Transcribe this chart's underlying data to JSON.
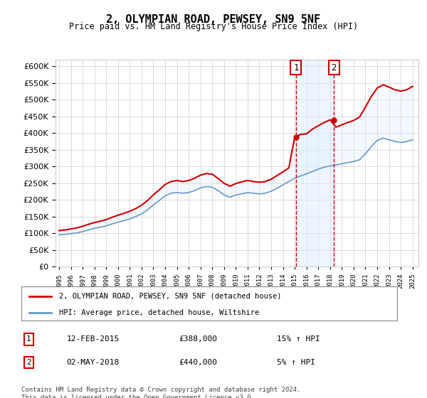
{
  "title": "2, OLYMPIAN ROAD, PEWSEY, SN9 5NF",
  "subtitle": "Price paid vs. HM Land Registry's House Price Index (HPI)",
  "ylabel_ticks": [
    "£0",
    "£50K",
    "£100K",
    "£150K",
    "£200K",
    "£250K",
    "£300K",
    "£350K",
    "£400K",
    "£450K",
    "£500K",
    "£550K",
    "£600K"
  ],
  "ylim": [
    0,
    620000
  ],
  "xlim_start": 1995.0,
  "xlim_end": 2025.5,
  "hpi_years": [
    1995.0,
    1995.5,
    1996.0,
    1996.5,
    1997.0,
    1997.5,
    1998.0,
    1998.5,
    1999.0,
    1999.5,
    2000.0,
    2000.5,
    2001.0,
    2001.5,
    2002.0,
    2002.5,
    2003.0,
    2003.5,
    2004.0,
    2004.5,
    2005.0,
    2005.5,
    2006.0,
    2006.5,
    2007.0,
    2007.5,
    2008.0,
    2008.5,
    2009.0,
    2009.5,
    2010.0,
    2010.5,
    2011.0,
    2011.5,
    2012.0,
    2012.5,
    2013.0,
    2013.5,
    2014.0,
    2014.5,
    2015.0,
    2015.5,
    2016.0,
    2016.5,
    2017.0,
    2017.5,
    2018.0,
    2018.5,
    2019.0,
    2019.5,
    2020.0,
    2020.5,
    2021.0,
    2021.5,
    2022.0,
    2022.5,
    2023.0,
    2023.5,
    2024.0,
    2024.5,
    2025.0
  ],
  "hpi_values": [
    95000,
    97000,
    99000,
    101000,
    105000,
    110000,
    115000,
    118000,
    122000,
    128000,
    133000,
    138000,
    143000,
    150000,
    158000,
    170000,
    185000,
    198000,
    212000,
    220000,
    222000,
    220000,
    222000,
    228000,
    236000,
    240000,
    238000,
    228000,
    215000,
    208000,
    215000,
    218000,
    222000,
    220000,
    218000,
    220000,
    226000,
    235000,
    245000,
    255000,
    265000,
    272000,
    278000,
    285000,
    292000,
    298000,
    302000,
    305000,
    308000,
    312000,
    315000,
    320000,
    338000,
    360000,
    378000,
    385000,
    380000,
    375000,
    372000,
    375000,
    380000
  ],
  "prop_years": [
    1995.0,
    1995.5,
    1996.0,
    1996.5,
    1997.0,
    1997.5,
    1998.0,
    1998.5,
    1999.0,
    1999.5,
    2000.0,
    2000.5,
    2001.0,
    2001.5,
    2002.0,
    2002.5,
    2003.0,
    2003.5,
    2004.0,
    2004.5,
    2005.0,
    2005.5,
    2006.0,
    2006.5,
    2007.0,
    2007.5,
    2008.0,
    2008.5,
    2009.0,
    2009.5,
    2010.0,
    2010.5,
    2011.0,
    2011.5,
    2012.0,
    2012.5,
    2013.0,
    2013.5,
    2014.0,
    2014.5,
    2015.0,
    2015.5,
    2016.0,
    2016.5,
    2017.0,
    2017.5,
    2018.0,
    2018.5,
    2019.0,
    2019.5,
    2020.0,
    2020.5,
    2021.0,
    2021.5,
    2022.0,
    2022.5,
    2023.0,
    2023.5,
    2024.0,
    2024.5,
    2025.0
  ],
  "prop_values": [
    108000,
    110000,
    113000,
    116000,
    121000,
    127000,
    132000,
    136000,
    141000,
    148000,
    154000,
    160000,
    166000,
    174000,
    184000,
    198000,
    215000,
    230000,
    246000,
    255000,
    258000,
    255000,
    258000,
    265000,
    274000,
    279000,
    277000,
    264000,
    250000,
    241000,
    249000,
    254000,
    258000,
    255000,
    253000,
    255000,
    262000,
    273000,
    284000,
    296000,
    388000,
    396000,
    398000,
    412000,
    422000,
    432000,
    440000,
    418000,
    425000,
    432000,
    438000,
    448000,
    478000,
    510000,
    535000,
    545000,
    538000,
    530000,
    526000,
    530000,
    540000
  ],
  "event1_year": 2015.1,
  "event2_year": 2018.33,
  "event1_price": 388000,
  "event2_price": 440000,
  "transactions": [
    {
      "num": "1",
      "date": "12-FEB-2015",
      "price": "£388,000",
      "hpi": "15% ↑ HPI"
    },
    {
      "num": "2",
      "date": "02-MAY-2018",
      "price": "£440,000",
      "hpi": "5% ↑ HPI"
    }
  ],
  "legend_prop": "2, OLYMPIAN ROAD, PEWSEY, SN9 5NF (detached house)",
  "legend_hpi": "HPI: Average price, detached house, Wiltshire",
  "footnote": "Contains HM Land Registry data © Crown copyright and database right 2024.\nThis data is licensed under the Open Government Licence v3.0.",
  "prop_color": "#cc0000",
  "hpi_color": "#6699cc",
  "fill_color": "#ddeeff",
  "grid_color": "#cccccc",
  "background_color": "#ffffff",
  "box_color": "#cc0000"
}
